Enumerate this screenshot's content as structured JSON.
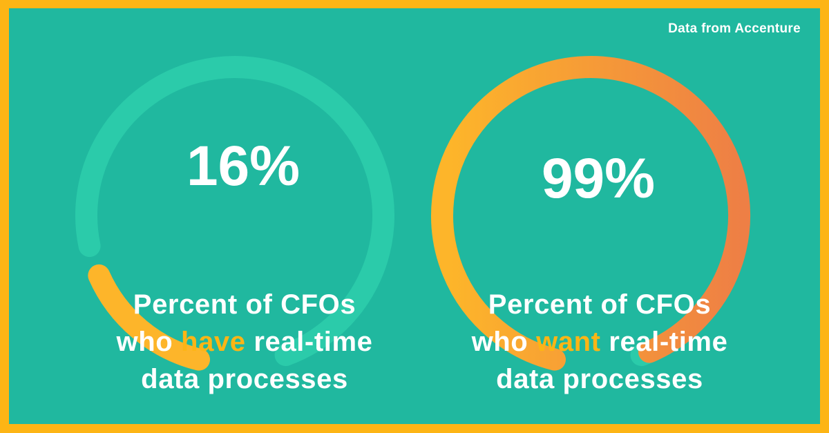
{
  "source_note": "Data from Accenture",
  "colors": {
    "border": "#FDB515",
    "background": "#20B89F",
    "track": "#2BCBAA",
    "arc_start": "#FDB52A",
    "arc_end": "#EE7F45",
    "highlight": "#FDB515"
  },
  "gauges": [
    {
      "percent_label": "16%",
      "caption": {
        "line1": "Percent of CFOs",
        "line2_before": "who ",
        "line2_highlight": "have",
        "line2_after": " real-time",
        "line3": "data processes"
      }
    },
    {
      "percent_label": "99%",
      "caption": {
        "line1": "Percent of CFOs",
        "line2_before": "who ",
        "line2_highlight": "want",
        "line2_after": " real-time",
        "line3": "data processes"
      }
    }
  ],
  "chart_data": {
    "type": "gauge",
    "categories": [
      "have real-time data processes",
      "want real-time data processes"
    ],
    "values": [
      16,
      99
    ],
    "unit": "%",
    "ylim": [
      0,
      100
    ]
  }
}
